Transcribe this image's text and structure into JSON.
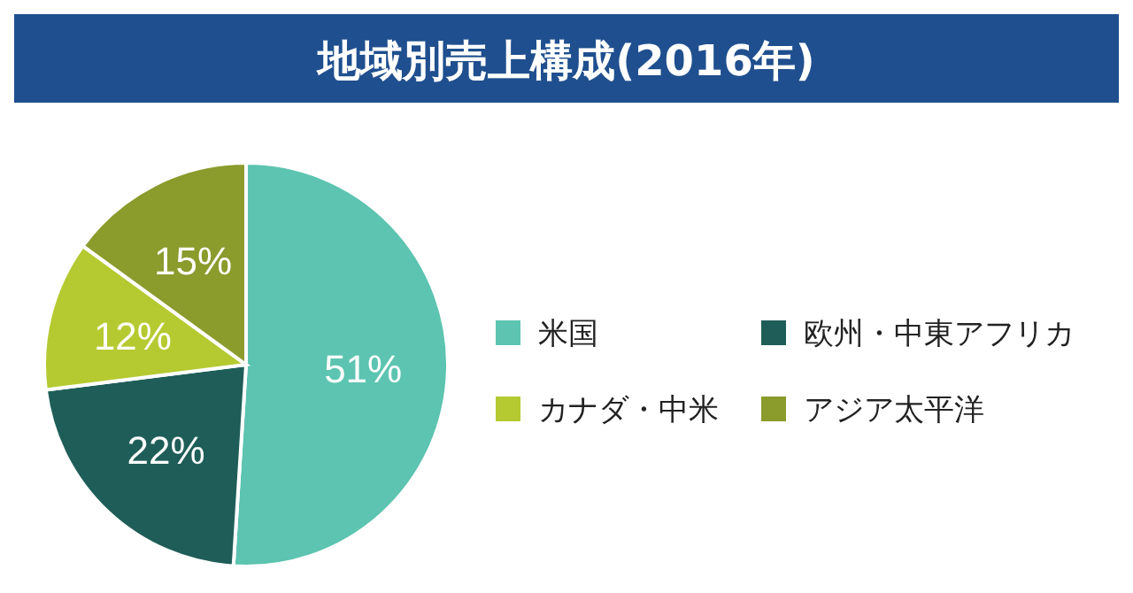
{
  "chart_data": {
    "type": "pie",
    "title": "地域別売上構成(2016年)",
    "categories": [
      "米国",
      "欧州・中東アフリカ",
      "カナダ・中米",
      "アジア太平洋"
    ],
    "values": [
      51,
      22,
      12,
      15
    ],
    "value_labels": [
      "51%",
      "22%",
      "12%",
      "15%"
    ],
    "colors": [
      "#5cc4b0",
      "#1f5e58",
      "#b5ca30",
      "#8b9b2c"
    ],
    "legend": "right"
  }
}
